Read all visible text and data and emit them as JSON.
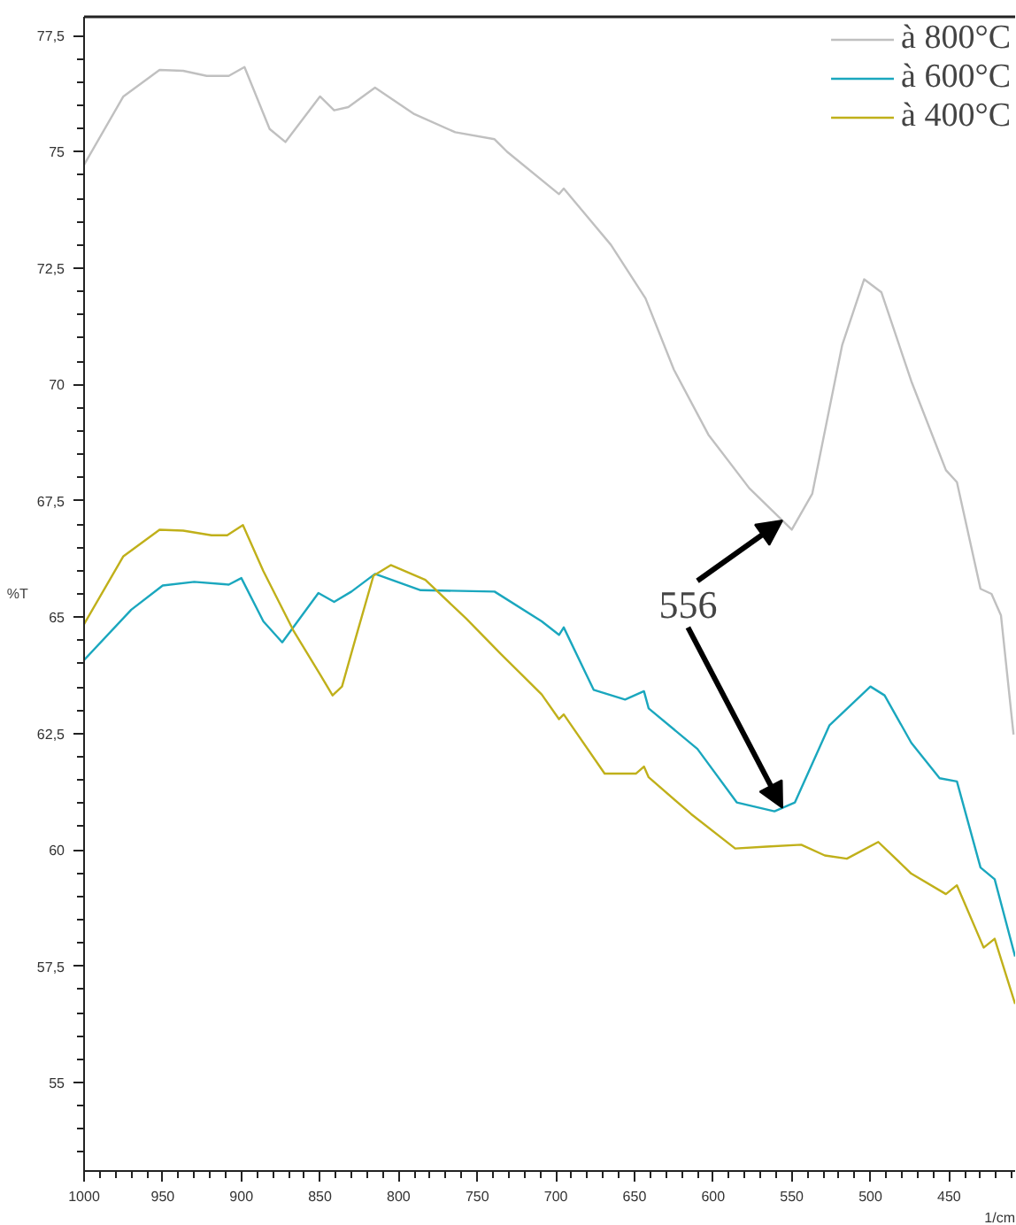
{
  "chart_data": {
    "type": "line",
    "xlabel": "1/cm",
    "ylabel": "%T",
    "xlim": [
      1000,
      408
    ],
    "ylim": [
      53.1,
      77.9
    ],
    "xticks": [
      1000,
      950,
      900,
      850,
      800,
      750,
      700,
      650,
      600,
      550,
      500,
      450
    ],
    "yticks": [
      {
        "value": 55,
        "label": "55"
      },
      {
        "value": 57.5,
        "label": "57,5"
      },
      {
        "value": 60,
        "label": "60"
      },
      {
        "value": 62.5,
        "label": "62,5"
      },
      {
        "value": 65,
        "label": "65"
      },
      {
        "value": 67.5,
        "label": "67,5"
      },
      {
        "value": 70,
        "label": "70"
      },
      {
        "value": 72.5,
        "label": "72,5"
      },
      {
        "value": 75,
        "label": "75"
      },
      {
        "value": 77.5,
        "label": "77,5"
      }
    ],
    "grid": false,
    "legend": "top right",
    "marker": "none",
    "line_style": "solid",
    "series": [
      {
        "name": "à 800°C",
        "color": "#c0c0c0",
        "x": [
          1000,
          975,
          952,
          937,
          922,
          908,
          898,
          882,
          872,
          850,
          841,
          832,
          815,
          790,
          764,
          739,
          731,
          698,
          695,
          665,
          643,
          625,
          603,
          577,
          550,
          537,
          518,
          504,
          493,
          474,
          452,
          445,
          430,
          423,
          417,
          409
        ],
        "values": [
          74.72,
          76.19,
          76.76,
          76.74,
          76.63,
          76.63,
          76.82,
          75.49,
          75.21,
          76.19,
          75.89,
          75.96,
          76.38,
          75.81,
          75.42,
          75.27,
          75.0,
          74.09,
          74.21,
          73.0,
          71.85,
          70.32,
          68.92,
          67.77,
          66.88,
          67.65,
          70.84,
          72.26,
          71.98,
          70.07,
          68.16,
          67.9,
          65.61,
          65.5,
          65.04,
          62.48
        ]
      },
      {
        "name": "à 600°C",
        "color": "#1aa7be",
        "x": [
          1000,
          970,
          950,
          930,
          908,
          900,
          886,
          874,
          851,
          841,
          830,
          815,
          786,
          739,
          709,
          698,
          695,
          676,
          656,
          644,
          641,
          610,
          585,
          561,
          548,
          526,
          500,
          491,
          474,
          456,
          445,
          430,
          421,
          408
        ],
        "values": [
          64.08,
          65.16,
          65.68,
          65.76,
          65.7,
          65.84,
          64.91,
          64.46,
          65.52,
          65.33,
          65.55,
          65.93,
          65.58,
          65.55,
          64.91,
          64.62,
          64.78,
          63.44,
          63.23,
          63.41,
          63.04,
          62.17,
          61.02,
          60.83,
          61.02,
          62.68,
          63.51,
          63.32,
          62.3,
          61.54,
          61.47,
          59.62,
          59.37,
          57.71
        ]
      },
      {
        "name": "à 400°C",
        "color": "#c0b01a",
        "x": [
          1000,
          975,
          952,
          937,
          919,
          909,
          899,
          886,
          867,
          851,
          842,
          836,
          827,
          816,
          805,
          783,
          757,
          735,
          709,
          698,
          695,
          669,
          649,
          644,
          641,
          614,
          586,
          566,
          544,
          529,
          515,
          495,
          474,
          452,
          445,
          428,
          421,
          408
        ],
        "values": [
          64.85,
          66.31,
          66.88,
          66.86,
          66.76,
          66.76,
          66.98,
          65.99,
          64.72,
          63.83,
          63.32,
          63.51,
          64.59,
          65.89,
          66.12,
          65.8,
          64.97,
          64.21,
          63.34,
          62.81,
          62.91,
          61.64,
          61.64,
          61.79,
          61.56,
          60.77,
          60.03,
          60.07,
          60.11,
          59.88,
          59.81,
          60.17,
          59.49,
          59.05,
          59.24,
          57.9,
          58.09,
          56.69
        ]
      }
    ],
    "annotations": [
      {
        "text": "556",
        "x": 556,
        "y": 66.88
      }
    ]
  }
}
